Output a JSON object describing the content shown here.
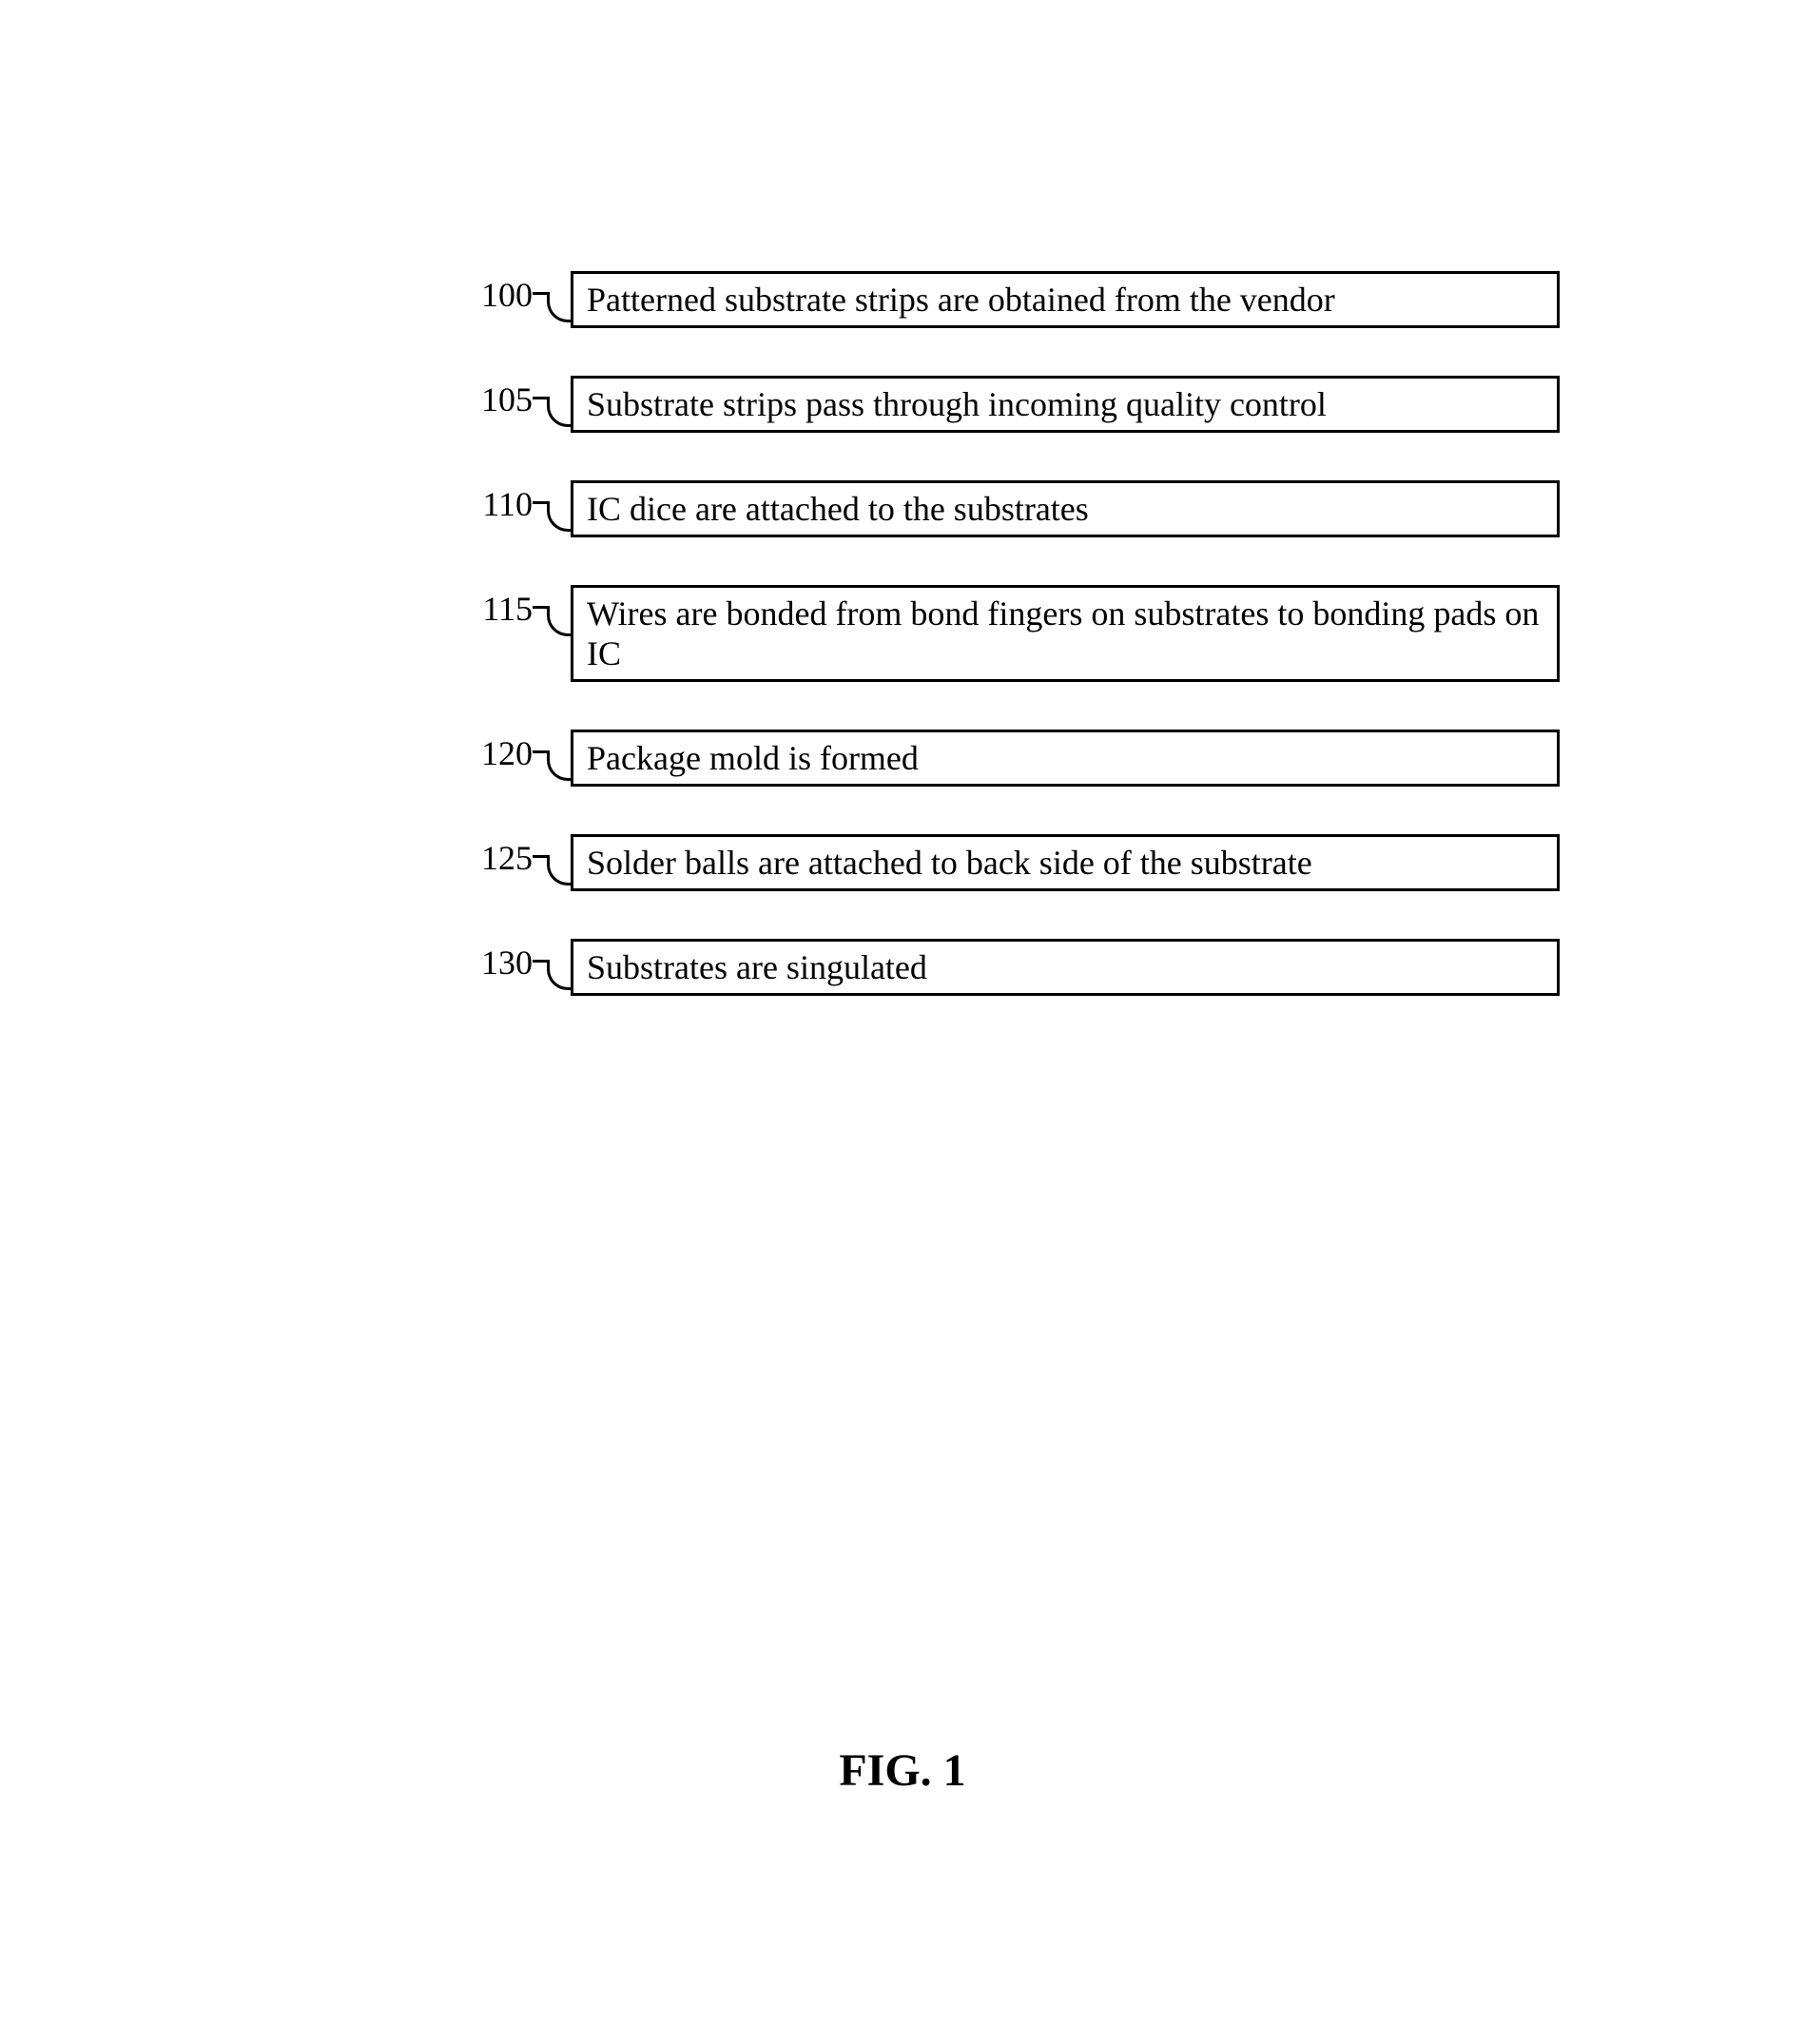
{
  "figure": {
    "label": "FIG. 1",
    "label_fontsize": 48,
    "label_fontweight": "bold"
  },
  "diagram": {
    "type": "flowchart",
    "font_family": "Times New Roman",
    "step_fontsize": 36,
    "label_fontsize": 36,
    "border_color": "#000000",
    "border_width": 3,
    "text_color": "#000000",
    "background_color": "#ffffff",
    "box_spacing": 50,
    "steps": [
      {
        "id": "100",
        "text": "Patterned substrate strips are obtained from the vendor",
        "tall": false
      },
      {
        "id": "105",
        "text": "Substrate strips pass through incoming quality control",
        "tall": false
      },
      {
        "id": "110",
        "text": "IC dice are attached to the substrates",
        "tall": false
      },
      {
        "id": "115",
        "text": "Wires are bonded from bond fingers on substrates to bonding pads on IC",
        "tall": true
      },
      {
        "id": "120",
        "text": "Package mold is formed",
        "tall": false
      },
      {
        "id": "125",
        "text": "Solder balls are attached to back side of the substrate",
        "tall": false
      },
      {
        "id": "130",
        "text": "Substrates are singulated",
        "tall": false
      }
    ]
  }
}
